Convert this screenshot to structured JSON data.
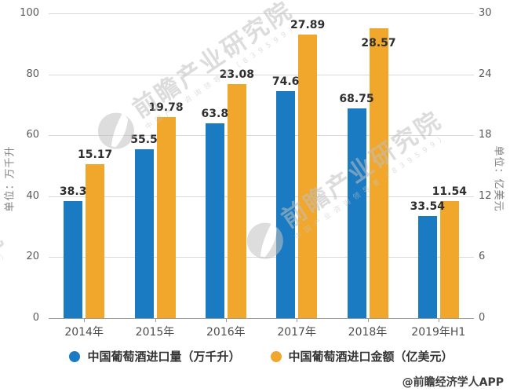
{
  "chart_data": {
    "type": "bar",
    "categories": [
      "2014年",
      "2015年",
      "2016年",
      "2017年",
      "2018年",
      "2019年H1"
    ],
    "series": [
      {
        "key": "volume",
        "name": "中国葡萄酒进口量（万千升）",
        "axis": "left",
        "color": "#1A7BC2",
        "values": [
          38.3,
          55.5,
          63.8,
          74.6,
          68.75,
          33.54
        ],
        "labels": [
          "38.3",
          "55.5",
          "63.8",
          "74.6",
          "68.75",
          "33.54"
        ],
        "label_inside": [
          false,
          false,
          false,
          false,
          false,
          false
        ]
      },
      {
        "key": "amount",
        "name": "中国葡萄酒进口金额（亿美元）",
        "axis": "right",
        "color": "#F0A72B",
        "values": [
          15.17,
          19.78,
          23.08,
          27.89,
          28.57,
          11.54
        ],
        "labels": [
          "15.17",
          "19.78",
          "23.08",
          "27.89",
          "28.57",
          "11.54"
        ],
        "label_inside": [
          false,
          false,
          false,
          false,
          true,
          false
        ]
      }
    ],
    "left_axis": {
      "title": "单位：万千升",
      "min": 0,
      "max": 100,
      "ticks": [
        100,
        80,
        60,
        40,
        20,
        0
      ]
    },
    "right_axis": {
      "title": "单位：亿美元",
      "min": 0,
      "max": 30,
      "ticks": [
        30,
        24,
        18,
        12,
        6,
        0
      ]
    },
    "grid": true,
    "legend_position": "bottom"
  },
  "watermark": {
    "logo": "qianzhan-globe-icon",
    "text": "前瞻产业研究院",
    "subtext": "中国产业咨询领导者（839599）"
  },
  "footer": {
    "credit": "@前瞻经济学人APP"
  },
  "colors": {
    "bar_blue": "#1A7BC2",
    "bar_orange": "#F0A72B",
    "gridline": "#D9D9D9",
    "axis_line": "#9B9B9B",
    "tick_label": "#595959",
    "axis_title": "#7F7F7F",
    "x_label": "#4D4D4D",
    "data_label": "#2E2E2E",
    "legend_text": "#333333",
    "watermark": "#C3C3C3"
  }
}
